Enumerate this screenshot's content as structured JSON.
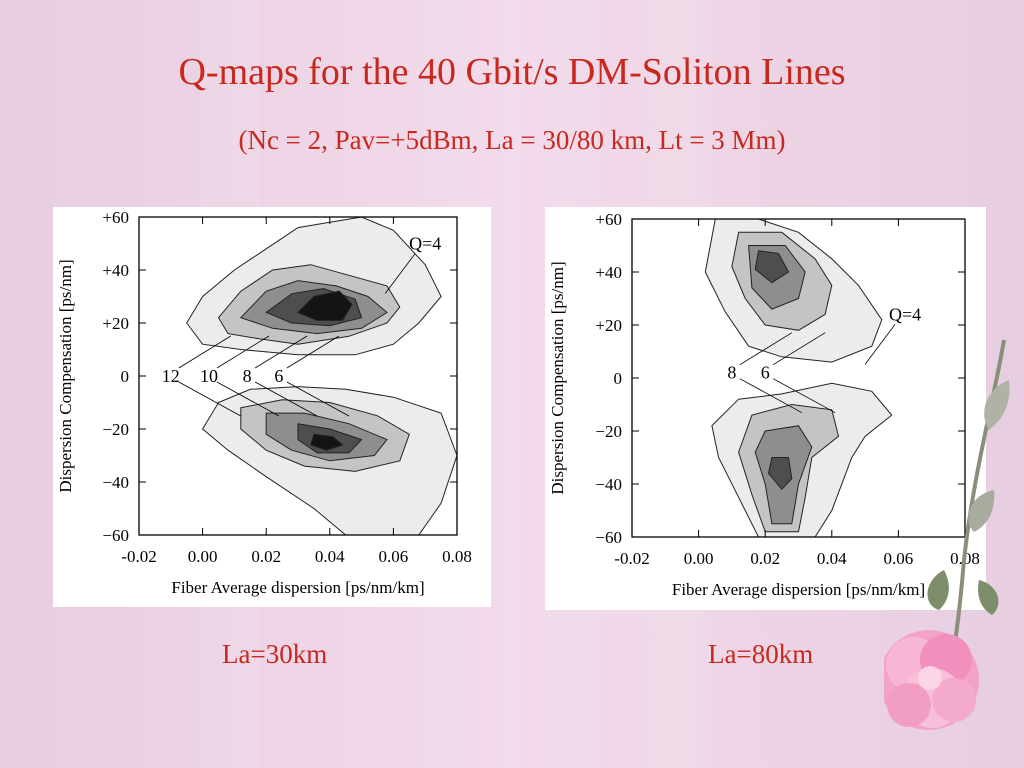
{
  "slide": {
    "title": "Q-maps for the 40 Gbit/s DM-Soliton Lines",
    "subtitle": "(Nc = 2, Pav=+5dBm, La = 30/80 km, Lt = 3 Mm)",
    "caption_left": "La=30km",
    "caption_right": "La=80km",
    "colors": {
      "text_red": "#c8281e",
      "background": "#ecd3e4"
    }
  },
  "chart_data": [
    {
      "type": "heatmap",
      "title": "",
      "xlabel": "Fiber Average dispersion [ps/nm/km]",
      "ylabel": "Dispersion Compensation [ps/nm]",
      "xlim": [
        -0.02,
        0.08
      ],
      "ylim": [
        -60,
        60
      ],
      "x_ticks": [
        "-0.02",
        "0.00",
        "0.02",
        "0.04",
        "0.06",
        "0.08"
      ],
      "y_ticks": [
        "+60",
        "+40",
        "+20",
        "0",
        "−20",
        "−40",
        "−60"
      ],
      "contour_levels": [
        4,
        6,
        8,
        10,
        12
      ],
      "annotations": [
        {
          "text": "Q=4",
          "x": 0.07,
          "y": 50
        },
        {
          "text": "12",
          "x": -0.01,
          "y": 0
        },
        {
          "text": "10",
          "x": 0.002,
          "y": 0
        },
        {
          "text": "8",
          "x": 0.014,
          "y": 0
        },
        {
          "text": "6",
          "x": 0.024,
          "y": 0
        }
      ],
      "blobs": [
        {
          "level": 4,
          "polygon": [
            [
              -0.005,
              20
            ],
            [
              0.0,
              30
            ],
            [
              0.01,
              40
            ],
            [
              0.02,
              48
            ],
            [
              0.03,
              56
            ],
            [
              0.04,
              58
            ],
            [
              0.05,
              60
            ],
            [
              0.06,
              55
            ],
            [
              0.07,
              42
            ],
            [
              0.075,
              30
            ],
            [
              0.068,
              20
            ],
            [
              0.06,
              12
            ],
            [
              0.048,
              8
            ],
            [
              0.03,
              8
            ],
            [
              0.012,
              10
            ],
            [
              0.0,
              12
            ]
          ]
        },
        {
          "level": 6,
          "polygon": [
            [
              0.005,
              22
            ],
            [
              0.012,
              32
            ],
            [
              0.022,
              40
            ],
            [
              0.034,
              42
            ],
            [
              0.046,
              38
            ],
            [
              0.058,
              34
            ],
            [
              0.062,
              26
            ],
            [
              0.058,
              20
            ],
            [
              0.046,
              15
            ],
            [
              0.03,
              12
            ],
            [
              0.018,
              14
            ],
            [
              0.008,
              16
            ]
          ]
        },
        {
          "level": 8,
          "polygon": [
            [
              0.012,
              22
            ],
            [
              0.02,
              32
            ],
            [
              0.03,
              36
            ],
            [
              0.042,
              34
            ],
            [
              0.052,
              30
            ],
            [
              0.058,
              24
            ],
            [
              0.05,
              18
            ],
            [
              0.036,
              16
            ],
            [
              0.022,
              18
            ]
          ]
        },
        {
          "level": 10,
          "polygon": [
            [
              0.02,
              24
            ],
            [
              0.028,
              31
            ],
            [
              0.038,
              33
            ],
            [
              0.048,
              29
            ],
            [
              0.05,
              22
            ],
            [
              0.04,
              19
            ],
            [
              0.028,
              20
            ]
          ]
        },
        {
          "level": 12,
          "polygon": [
            [
              0.03,
              24
            ],
            [
              0.035,
              30
            ],
            [
              0.043,
              32
            ],
            [
              0.047,
              27
            ],
            [
              0.044,
              21
            ],
            [
              0.036,
              21
            ]
          ]
        },
        {
          "level": 4,
          "polygon": [
            [
              0.005,
              -10
            ],
            [
              0.015,
              -5
            ],
            [
              0.03,
              -4
            ],
            [
              0.045,
              -5
            ],
            [
              0.06,
              -8
            ],
            [
              0.075,
              -14
            ],
            [
              0.08,
              -30
            ],
            [
              0.075,
              -48
            ],
            [
              0.068,
              -60
            ],
            [
              0.045,
              -60
            ],
            [
              0.035,
              -50
            ],
            [
              0.02,
              -38
            ],
            [
              0.008,
              -28
            ],
            [
              0.0,
              -20
            ]
          ]
        },
        {
          "level": 6,
          "polygon": [
            [
              0.012,
              -12
            ],
            [
              0.025,
              -9
            ],
            [
              0.04,
              -10
            ],
            [
              0.055,
              -15
            ],
            [
              0.065,
              -22
            ],
            [
              0.062,
              -32
            ],
            [
              0.048,
              -36
            ],
            [
              0.032,
              -34
            ],
            [
              0.02,
              -28
            ],
            [
              0.012,
              -20
            ]
          ]
        },
        {
          "level": 8,
          "polygon": [
            [
              0.02,
              -14
            ],
            [
              0.032,
              -14
            ],
            [
              0.046,
              -18
            ],
            [
              0.058,
              -24
            ],
            [
              0.054,
              -30
            ],
            [
              0.04,
              -32
            ],
            [
              0.028,
              -28
            ],
            [
              0.02,
              -22
            ]
          ]
        },
        {
          "level": 10,
          "polygon": [
            [
              0.03,
              -18
            ],
            [
              0.04,
              -20
            ],
            [
              0.05,
              -24
            ],
            [
              0.046,
              -29
            ],
            [
              0.036,
              -29
            ],
            [
              0.03,
              -24
            ]
          ]
        },
        {
          "level": 12,
          "polygon": [
            [
              0.035,
              -22
            ],
            [
              0.041,
              -23
            ],
            [
              0.044,
              -26
            ],
            [
              0.039,
              -28
            ],
            [
              0.034,
              -26
            ]
          ]
        }
      ]
    },
    {
      "type": "heatmap",
      "title": "",
      "xlabel": "Fiber Average dispersion [ps/nm/km]",
      "ylabel": "Dispersion Compensation [ps/nm]",
      "xlim": [
        -0.02,
        0.08
      ],
      "ylim": [
        -60,
        60
      ],
      "x_ticks": [
        "-0.02",
        "0.00",
        "0.02",
        "0.04",
        "0.06",
        "0.08"
      ],
      "y_ticks": [
        "+60",
        "+40",
        "+20",
        "0",
        "−20",
        "−40",
        "−60"
      ],
      "contour_levels": [
        4,
        6,
        8,
        10
      ],
      "annotations": [
        {
          "text": "Q=4",
          "x": 0.062,
          "y": 24
        },
        {
          "text": "8",
          "x": 0.01,
          "y": 2
        },
        {
          "text": "6",
          "x": 0.02,
          "y": 2
        }
      ],
      "blobs": [
        {
          "level": 4,
          "polygon": [
            [
              0.005,
              60
            ],
            [
              0.018,
              60
            ],
            [
              0.03,
              55
            ],
            [
              0.04,
              45
            ],
            [
              0.048,
              35
            ],
            [
              0.055,
              22
            ],
            [
              0.052,
              12
            ],
            [
              0.04,
              6
            ],
            [
              0.025,
              8
            ],
            [
              0.015,
              12
            ],
            [
              0.008,
              25
            ],
            [
              0.002,
              40
            ]
          ]
        },
        {
          "level": 6,
          "polygon": [
            [
              0.012,
              55
            ],
            [
              0.025,
              55
            ],
            [
              0.035,
              45
            ],
            [
              0.04,
              35
            ],
            [
              0.038,
              24
            ],
            [
              0.03,
              18
            ],
            [
              0.02,
              20
            ],
            [
              0.014,
              30
            ],
            [
              0.01,
              42
            ]
          ]
        },
        {
          "level": 8,
          "polygon": [
            [
              0.015,
              50
            ],
            [
              0.026,
              50
            ],
            [
              0.032,
              40
            ],
            [
              0.03,
              30
            ],
            [
              0.022,
              26
            ],
            [
              0.016,
              34
            ]
          ]
        },
        {
          "level": 10,
          "polygon": [
            [
              0.018,
              48
            ],
            [
              0.024,
              47
            ],
            [
              0.027,
              40
            ],
            [
              0.022,
              36
            ],
            [
              0.017,
              41
            ]
          ]
        },
        {
          "level": 4,
          "polygon": [
            [
              0.012,
              -8
            ],
            [
              0.025,
              -6
            ],
            [
              0.04,
              -2
            ],
            [
              0.052,
              -5
            ],
            [
              0.058,
              -14
            ],
            [
              0.05,
              -22
            ],
            [
              0.046,
              -30
            ],
            [
              0.04,
              -50
            ],
            [
              0.035,
              -60
            ],
            [
              0.018,
              -60
            ],
            [
              0.012,
              -45
            ],
            [
              0.006,
              -30
            ],
            [
              0.004,
              -18
            ]
          ]
        },
        {
          "level": 6,
          "polygon": [
            [
              0.016,
              -14
            ],
            [
              0.028,
              -10
            ],
            [
              0.04,
              -12
            ],
            [
              0.042,
              -22
            ],
            [
              0.034,
              -30
            ],
            [
              0.032,
              -45
            ],
            [
              0.03,
              -58
            ],
            [
              0.02,
              -58
            ],
            [
              0.016,
              -44
            ],
            [
              0.012,
              -28
            ]
          ]
        },
        {
          "level": 8,
          "polygon": [
            [
              0.02,
              -20
            ],
            [
              0.03,
              -18
            ],
            [
              0.034,
              -26
            ],
            [
              0.03,
              -40
            ],
            [
              0.028,
              -55
            ],
            [
              0.022,
              -55
            ],
            [
              0.02,
              -40
            ],
            [
              0.017,
              -28
            ]
          ]
        },
        {
          "level": 10,
          "polygon": [
            [
              0.022,
              -30
            ],
            [
              0.027,
              -30
            ],
            [
              0.028,
              -38
            ],
            [
              0.025,
              -42
            ],
            [
              0.021,
              -36
            ]
          ]
        }
      ]
    }
  ]
}
